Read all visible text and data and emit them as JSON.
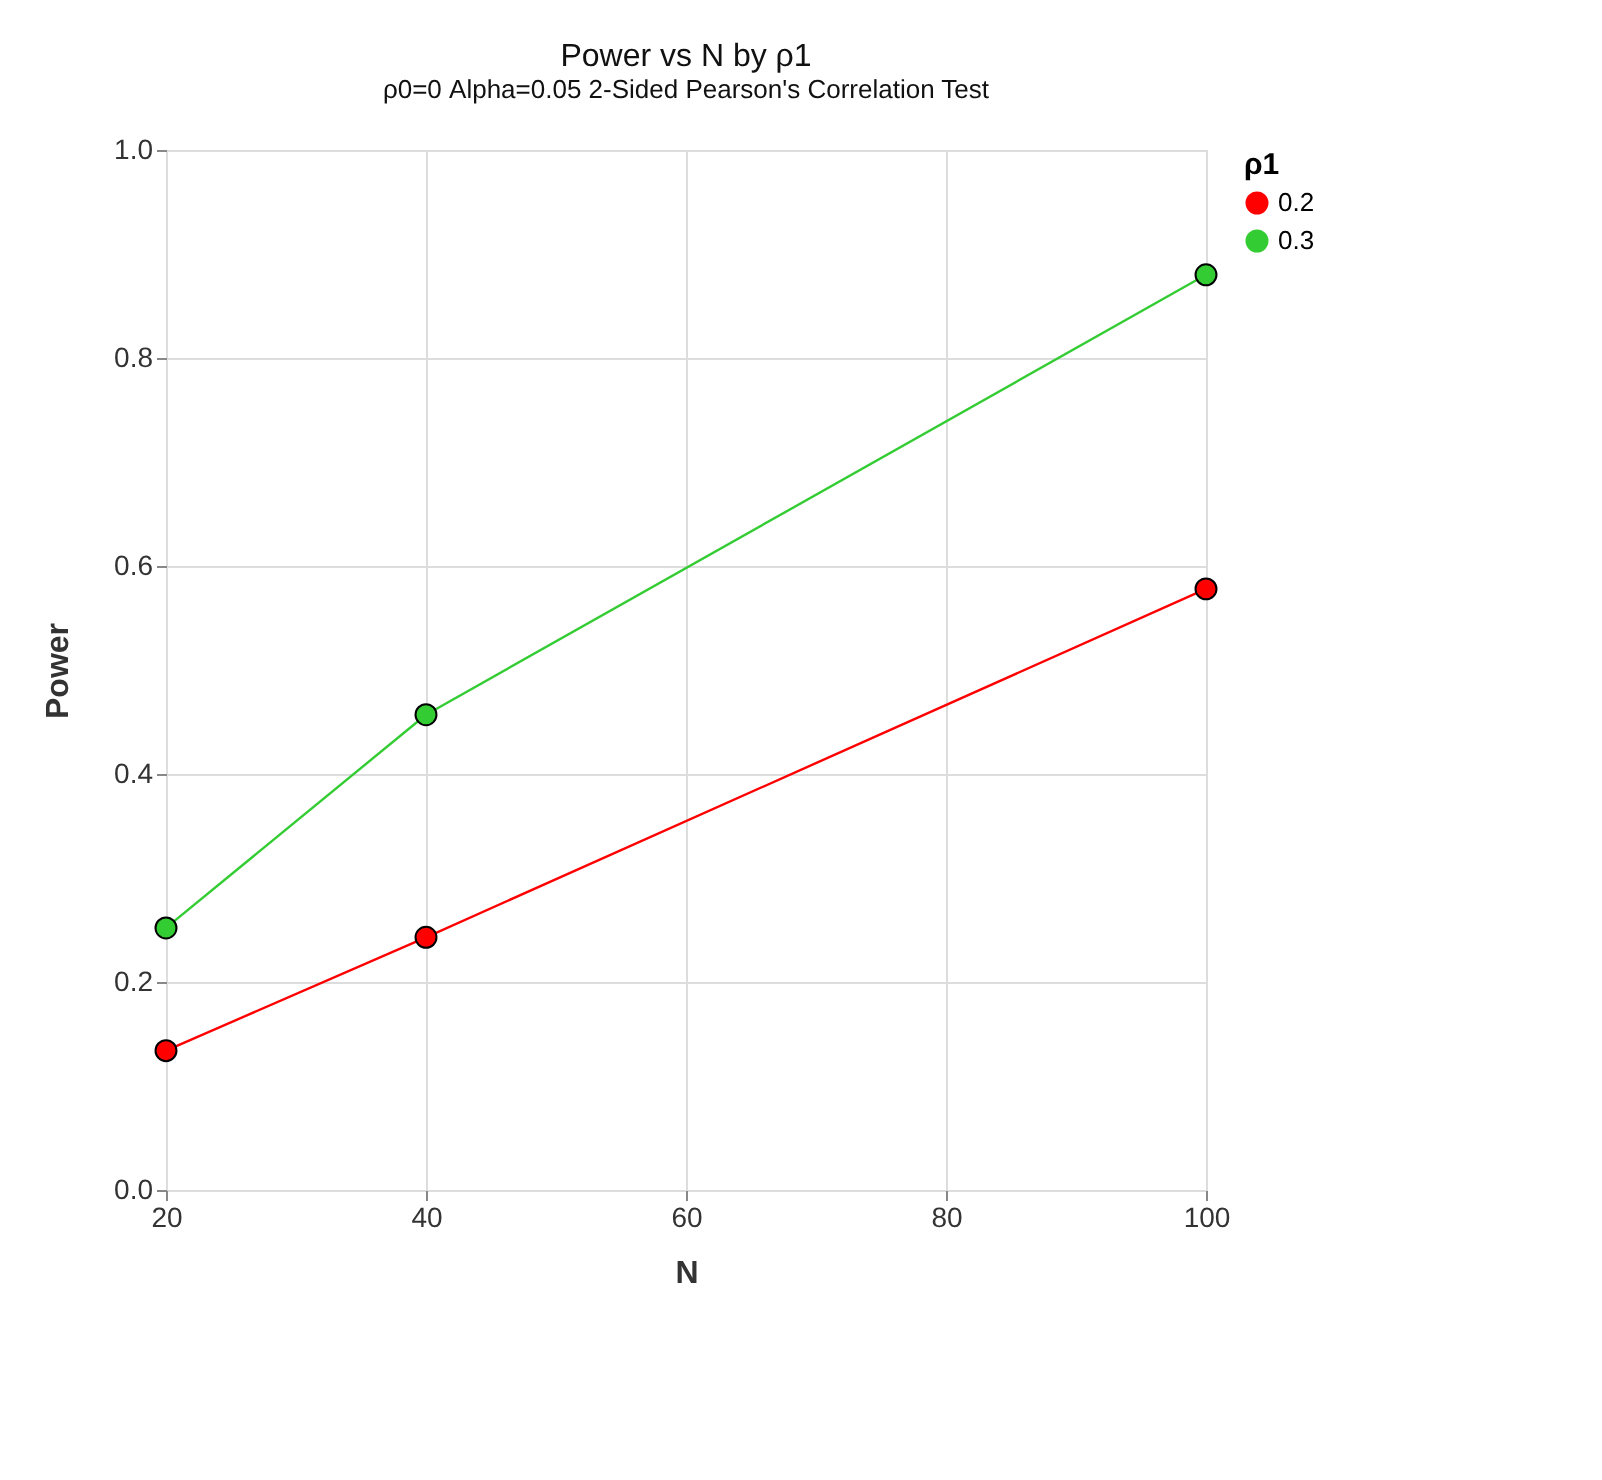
{
  "chart_data": {
    "type": "line",
    "title": "Power vs N by ρ1",
    "subtitle": "ρ0=0 Alpha=0.05 2-Sided Pearson's Correlation Test",
    "xlabel": "N",
    "ylabel": "Power",
    "legend_title": "ρ1",
    "x": [
      20,
      40,
      100
    ],
    "series": [
      {
        "name": "0.2",
        "color": "#ff0000",
        "values": [
          0.134,
          0.243,
          0.578
        ]
      },
      {
        "name": "0.3",
        "color": "#33cc33",
        "values": [
          0.252,
          0.457,
          0.88
        ]
      }
    ],
    "xlim": [
      20,
      100
    ],
    "xticks": [
      20,
      40,
      60,
      80,
      100
    ],
    "ylim": [
      0,
      1
    ],
    "yticks": [
      {
        "value": 0,
        "label": "0.0"
      },
      {
        "value": 0.2,
        "label": "0.2"
      },
      {
        "value": 0.4,
        "label": "0.4"
      },
      {
        "value": 0.6,
        "label": "0.6"
      },
      {
        "value": 0.8,
        "label": "0.8"
      },
      {
        "value": 1,
        "label": "1.0"
      }
    ],
    "grid": true,
    "legend": "right",
    "marker": "circle",
    "line_style": "solid"
  }
}
